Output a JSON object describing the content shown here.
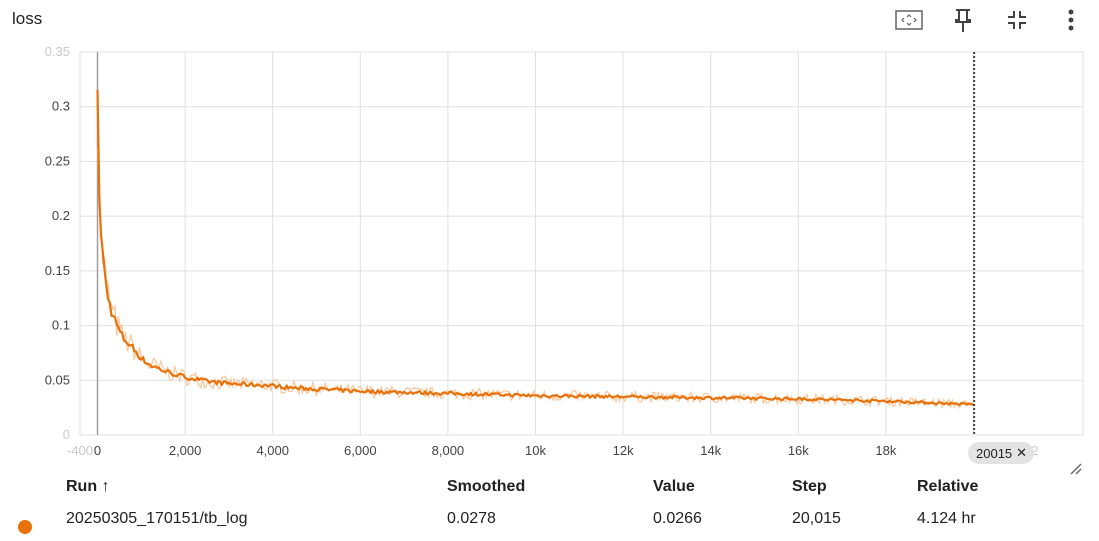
{
  "title": "loss",
  "toolbar": {
    "icons": [
      "fit-domain-icon",
      "pin-icon",
      "collapse-icon",
      "more-vert-icon"
    ]
  },
  "colors": {
    "series": "#e8710a",
    "series_raw": "#f9c9a0",
    "grid": "#e0e0e0",
    "axis": "#9e9e9e"
  },
  "chart_data": {
    "type": "line",
    "title": "loss",
    "xlabel": "",
    "ylabel": "",
    "xlim": [
      -400,
      22500
    ],
    "ylim": [
      0,
      0.35
    ],
    "grid": true,
    "legend": "none",
    "x_ticks": [
      "-400",
      "0",
      "2,000",
      "4,000",
      "6,000",
      "8,000",
      "10k",
      "12k",
      "14k",
      "16k",
      "18k",
      "2"
    ],
    "y_ticks": [
      "0",
      "0.05",
      "0.1",
      "0.15",
      "0.2",
      "0.25",
      "0.3",
      "0.35"
    ],
    "series": [
      {
        "name": "20250305_170151/tb_log",
        "x": [
          0,
          20,
          50,
          100,
          150,
          200,
          300,
          400,
          500,
          600,
          800,
          1000,
          1200,
          1500,
          1800,
          2000,
          2500,
          3000,
          3500,
          4000,
          4500,
          5000,
          6000,
          7000,
          8000,
          9000,
          10000,
          11000,
          12000,
          13000,
          14000,
          15000,
          16000,
          17000,
          18000,
          19000,
          20015
        ],
        "values": [
          0.305,
          0.27,
          0.2,
          0.17,
          0.155,
          0.135,
          0.115,
          0.105,
          0.095,
          0.088,
          0.08,
          0.07,
          0.064,
          0.059,
          0.055,
          0.053,
          0.049,
          0.047,
          0.046,
          0.045,
          0.043,
          0.042,
          0.04,
          0.039,
          0.038,
          0.037,
          0.036,
          0.0355,
          0.035,
          0.0345,
          0.034,
          0.0335,
          0.033,
          0.032,
          0.031,
          0.0295,
          0.0278
        ]
      }
    ],
    "selected_step": "20015"
  },
  "table": {
    "headers": {
      "run": "Run",
      "sort_arrow": "↑",
      "smoothed": "Smoothed",
      "value": "Value",
      "step": "Step",
      "relative": "Relative"
    },
    "rows": [
      {
        "run": "20250305_170151/tb_log",
        "smoothed": "0.0278",
        "value": "0.0266",
        "step": "20,015",
        "relative": "4.124 hr"
      }
    ]
  }
}
